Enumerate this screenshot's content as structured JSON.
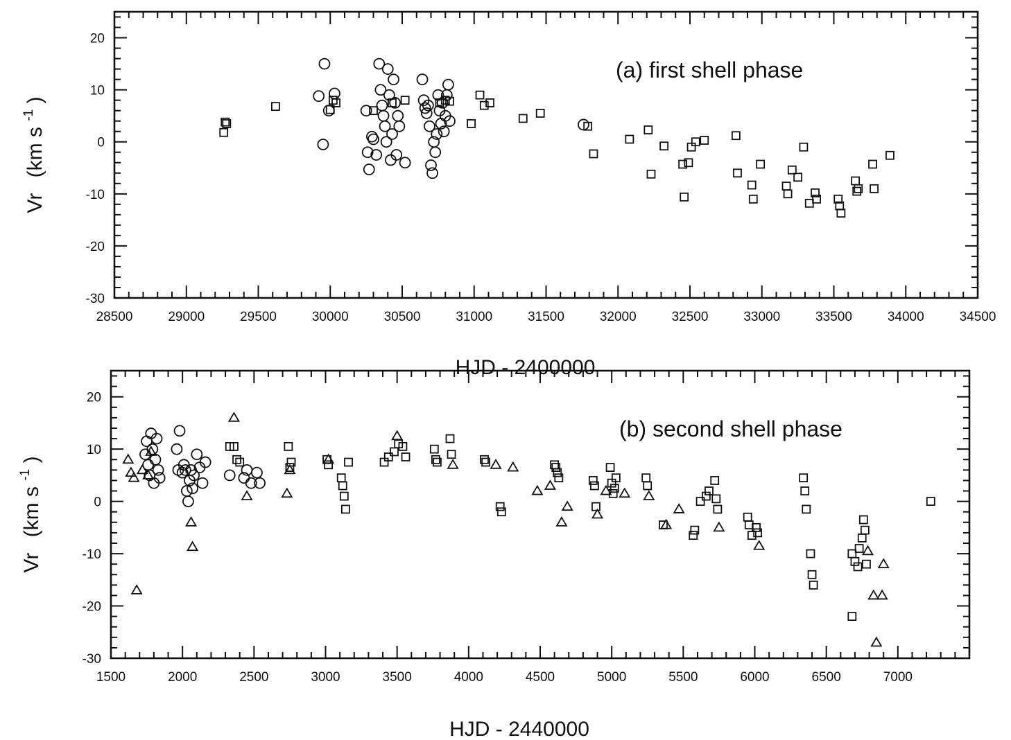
{
  "chart_data": [
    {
      "type": "scatter",
      "title": "(a) first shell phase",
      "xlabel": "HJD - 2400000",
      "ylabel": "Vr",
      "ylabel_unit": "(km s",
      "ylabel_exp": "-1",
      "ylabel_close": ")",
      "xlim": [
        28500,
        34500
      ],
      "ylim": [
        -30,
        25
      ],
      "xticks": [
        "28500",
        "29000",
        "29500",
        "30000",
        "30500",
        "31000",
        "31500",
        "32000",
        "32500",
        "33000",
        "33500",
        "34000",
        "34500"
      ],
      "yticks": [
        "20",
        "10",
        "0",
        "-10",
        "-20",
        "-30"
      ],
      "grid": false,
      "series": [
        {
          "marker": "circle",
          "points": [
            [
              29920,
              8.8
            ],
            [
              29960,
              15.0
            ],
            [
              29950,
              -0.5
            ],
            [
              29990,
              6.0
            ],
            [
              30030,
              9.3
            ],
            [
              30250,
              6.0
            ],
            [
              30260,
              -2.0
            ],
            [
              30270,
              -5.3
            ],
            [
              30290,
              1.0
            ],
            [
              30300,
              0.5
            ],
            [
              30320,
              -2.5
            ],
            [
              30340,
              15.0
            ],
            [
              30350,
              10.0
            ],
            [
              30360,
              7.0
            ],
            [
              30370,
              5.0
            ],
            [
              30380,
              3.0
            ],
            [
              30390,
              0.0
            ],
            [
              30400,
              14.0
            ],
            [
              30410,
              9.0
            ],
            [
              30420,
              -3.5
            ],
            [
              30430,
              1.5
            ],
            [
              30440,
              12.0
            ],
            [
              30450,
              7.5
            ],
            [
              30460,
              -2.5
            ],
            [
              30470,
              5.0
            ],
            [
              30480,
              3.0
            ],
            [
              30520,
              -4.0
            ],
            [
              30640,
              12.0
            ],
            [
              30650,
              8.0
            ],
            [
              30660,
              6.5
            ],
            [
              30670,
              5.5
            ],
            [
              30680,
              7.0
            ],
            [
              30690,
              3.0
            ],
            [
              30700,
              -4.5
            ],
            [
              30710,
              -6.0
            ],
            [
              30720,
              0.0
            ],
            [
              30730,
              -2.0
            ],
            [
              30740,
              1.5
            ],
            [
              30750,
              9.0
            ],
            [
              30760,
              6.0
            ],
            [
              30770,
              3.5
            ],
            [
              30780,
              7.5
            ],
            [
              30790,
              2.0
            ],
            [
              30800,
              5.0
            ],
            [
              30810,
              9.0
            ],
            [
              30820,
              11.0
            ],
            [
              30830,
              4.0
            ],
            [
              31760,
              3.3
            ]
          ]
        },
        {
          "marker": "square",
          "points": [
            [
              29260,
              1.8
            ],
            [
              29270,
              3.8
            ],
            [
              29280,
              3.5
            ],
            [
              29620,
              6.8
            ],
            [
              30000,
              6.2
            ],
            [
              30020,
              8.0
            ],
            [
              30040,
              7.5
            ],
            [
              30300,
              6.0
            ],
            [
              30430,
              7.5
            ],
            [
              30520,
              8.0
            ],
            [
              30760,
              7.5
            ],
            [
              30800,
              8.0
            ],
            [
              30830,
              7.8
            ],
            [
              30980,
              3.5
            ],
            [
              31040,
              9.0
            ],
            [
              31070,
              7.0
            ],
            [
              31110,
              7.5
            ],
            [
              31340,
              4.5
            ],
            [
              31460,
              5.5
            ],
            [
              31790,
              3.0
            ],
            [
              31830,
              -2.3
            ],
            [
              32080,
              0.5
            ],
            [
              32210,
              2.3
            ],
            [
              32230,
              -6.2
            ],
            [
              32320,
              -0.8
            ],
            [
              32450,
              -4.3
            ],
            [
              32460,
              -10.6
            ],
            [
              32490,
              -4.0
            ],
            [
              32510,
              -1.0
            ],
            [
              32540,
              0.0
            ],
            [
              32600,
              0.3
            ],
            [
              32820,
              1.2
            ],
            [
              32830,
              -6.0
            ],
            [
              32930,
              -8.3
            ],
            [
              32940,
              -11.0
            ],
            [
              32990,
              -4.3
            ],
            [
              33170,
              -8.5
            ],
            [
              33180,
              -10.0
            ],
            [
              33210,
              -5.4
            ],
            [
              33250,
              -6.8
            ],
            [
              33290,
              -1.0
            ],
            [
              33330,
              -11.8
            ],
            [
              33370,
              -9.8
            ],
            [
              33380,
              -11.0
            ],
            [
              33530,
              -11.0
            ],
            [
              33540,
              -12.3
            ],
            [
              33550,
              -13.7
            ],
            [
              33650,
              -7.5
            ],
            [
              33660,
              -9.5
            ],
            [
              33670,
              -9.0
            ],
            [
              33770,
              -4.3
            ],
            [
              33780,
              -9.0
            ],
            [
              33890,
              -2.6
            ]
          ]
        }
      ]
    },
    {
      "type": "scatter",
      "title": "(b) second shell phase",
      "xlabel": "HJD - 2440000",
      "ylabel": "Vr",
      "ylabel_unit": "(km s",
      "ylabel_exp": "-1",
      "ylabel_close": ")",
      "xlim": [
        1500,
        7500
      ],
      "ylim": [
        -30,
        25
      ],
      "xticks": [
        "1500",
        "2000",
        "2500",
        "3000",
        "3500",
        "4000",
        "4500",
        "5000",
        "5500",
        "6000",
        "6500",
        "7000"
      ],
      "yticks": [
        "20",
        "10",
        "0",
        "-10",
        "-20",
        "-30"
      ],
      "grid": false,
      "series": [
        {
          "marker": "circle",
          "points": [
            [
              1740,
              9.0
            ],
            [
              1750,
              11.5
            ],
            [
              1760,
              7.0
            ],
            [
              1770,
              5.0
            ],
            [
              1780,
              13.0
            ],
            [
              1790,
              10.0
            ],
            [
              1800,
              3.5
            ],
            [
              1810,
              8.0
            ],
            [
              1820,
              12.0
            ],
            [
              1830,
              6.0
            ],
            [
              1840,
              4.5
            ],
            [
              1960,
              10.0
            ],
            [
              1970,
              6.0
            ],
            [
              1980,
              13.5
            ],
            [
              2000,
              5.5
            ],
            [
              2010,
              7.0
            ],
            [
              2020,
              6.0
            ],
            [
              2030,
              2.0
            ],
            [
              2040,
              0.0
            ],
            [
              2050,
              4.0
            ],
            [
              2060,
              6.0
            ],
            [
              2070,
              2.5
            ],
            [
              2080,
              5.0
            ],
            [
              2100,
              9.0
            ],
            [
              2120,
              6.5
            ],
            [
              2140,
              3.5
            ],
            [
              2160,
              7.5
            ],
            [
              2330,
              5.0
            ],
            [
              2430,
              4.5
            ],
            [
              2450,
              6.0
            ],
            [
              2480,
              3.5
            ],
            [
              2520,
              5.5
            ],
            [
              2540,
              3.5
            ]
          ]
        },
        {
          "marker": "square",
          "points": [
            [
              2330,
              10.5
            ],
            [
              2360,
              10.5
            ],
            [
              2380,
              8.0
            ],
            [
              2400,
              7.5
            ],
            [
              2740,
              10.5
            ],
            [
              2750,
              6.5
            ],
            [
              2760,
              7.5
            ],
            [
              3010,
              8.0
            ],
            [
              3020,
              7.0
            ],
            [
              3110,
              4.5
            ],
            [
              3120,
              3.0
            ],
            [
              3130,
              1.0
            ],
            [
              3140,
              -1.5
            ],
            [
              3160,
              7.5
            ],
            [
              3410,
              7.5
            ],
            [
              3440,
              8.5
            ],
            [
              3480,
              9.5
            ],
            [
              3510,
              11.0
            ],
            [
              3540,
              10.5
            ],
            [
              3560,
              8.5
            ],
            [
              3760,
              10.0
            ],
            [
              3770,
              8.0
            ],
            [
              3780,
              7.5
            ],
            [
              3870,
              12.0
            ],
            [
              3880,
              9.0
            ],
            [
              4110,
              8.0
            ],
            [
              4120,
              7.5
            ],
            [
              4220,
              -1.0
            ],
            [
              4230,
              -2.0
            ],
            [
              4600,
              7.0
            ],
            [
              4610,
              6.5
            ],
            [
              4620,
              5.5
            ],
            [
              4630,
              4.5
            ],
            [
              4870,
              4.0
            ],
            [
              4880,
              3.0
            ],
            [
              4890,
              -1.0
            ],
            [
              4990,
              6.5
            ],
            [
              5000,
              3.5
            ],
            [
              5010,
              1.5
            ],
            [
              5020,
              2.5
            ],
            [
              5030,
              4.5
            ],
            [
              5240,
              4.5
            ],
            [
              5250,
              3.0
            ],
            [
              5360,
              -4.5
            ],
            [
              5570,
              -6.5
            ],
            [
              5580,
              -5.5
            ],
            [
              5620,
              0.0
            ],
            [
              5660,
              1.0
            ],
            [
              5680,
              2.0
            ],
            [
              5720,
              4.0
            ],
            [
              5730,
              0.5
            ],
            [
              5740,
              -1.5
            ],
            [
              5950,
              -3.0
            ],
            [
              5960,
              -4.5
            ],
            [
              5980,
              -6.5
            ],
            [
              6010,
              -5.0
            ],
            [
              6020,
              -6.0
            ],
            [
              6340,
              4.5
            ],
            [
              6350,
              2.0
            ],
            [
              6360,
              -1.5
            ],
            [
              6390,
              -10.0
            ],
            [
              6400,
              -14.0
            ],
            [
              6410,
              -16.0
            ],
            [
              6680,
              -10.0
            ],
            [
              6700,
              -11.5
            ],
            [
              6720,
              -12.5
            ],
            [
              6730,
              -9.0
            ],
            [
              6750,
              -7.0
            ],
            [
              6760,
              -3.5
            ],
            [
              6770,
              -5.5
            ],
            [
              6780,
              -12.0
            ],
            [
              6680,
              -22.0
            ],
            [
              7230,
              0.0
            ]
          ]
        },
        {
          "marker": "triangle",
          "points": [
            [
              1620,
              8.0
            ],
            [
              1640,
              5.5
            ],
            [
              1660,
              4.5
            ],
            [
              1680,
              -17.0
            ],
            [
              1720,
              6.0
            ],
            [
              1760,
              5.0
            ],
            [
              1780,
              9.5
            ],
            [
              2060,
              -4.0
            ],
            [
              2070,
              -8.7
            ],
            [
              2360,
              16.0
            ],
            [
              2450,
              1.0
            ],
            [
              2730,
              1.5
            ],
            [
              2750,
              6.0
            ],
            [
              3020,
              8.0
            ],
            [
              3500,
              12.5
            ],
            [
              3890,
              7.0
            ],
            [
              4190,
              7.0
            ],
            [
              4310,
              6.5
            ],
            [
              4480,
              2.0
            ],
            [
              4570,
              3.0
            ],
            [
              4650,
              -4.0
            ],
            [
              4690,
              -1.0
            ],
            [
              4900,
              -2.5
            ],
            [
              4960,
              2.0
            ],
            [
              5090,
              1.5
            ],
            [
              5260,
              1.0
            ],
            [
              5380,
              -4.5
            ],
            [
              5470,
              -1.5
            ],
            [
              5750,
              -5.0
            ],
            [
              6030,
              -8.5
            ],
            [
              6790,
              -9.5
            ],
            [
              6830,
              -18.0
            ],
            [
              6850,
              -27.0
            ],
            [
              6890,
              -18.0
            ],
            [
              6900,
              -12.0
            ]
          ]
        }
      ]
    }
  ]
}
